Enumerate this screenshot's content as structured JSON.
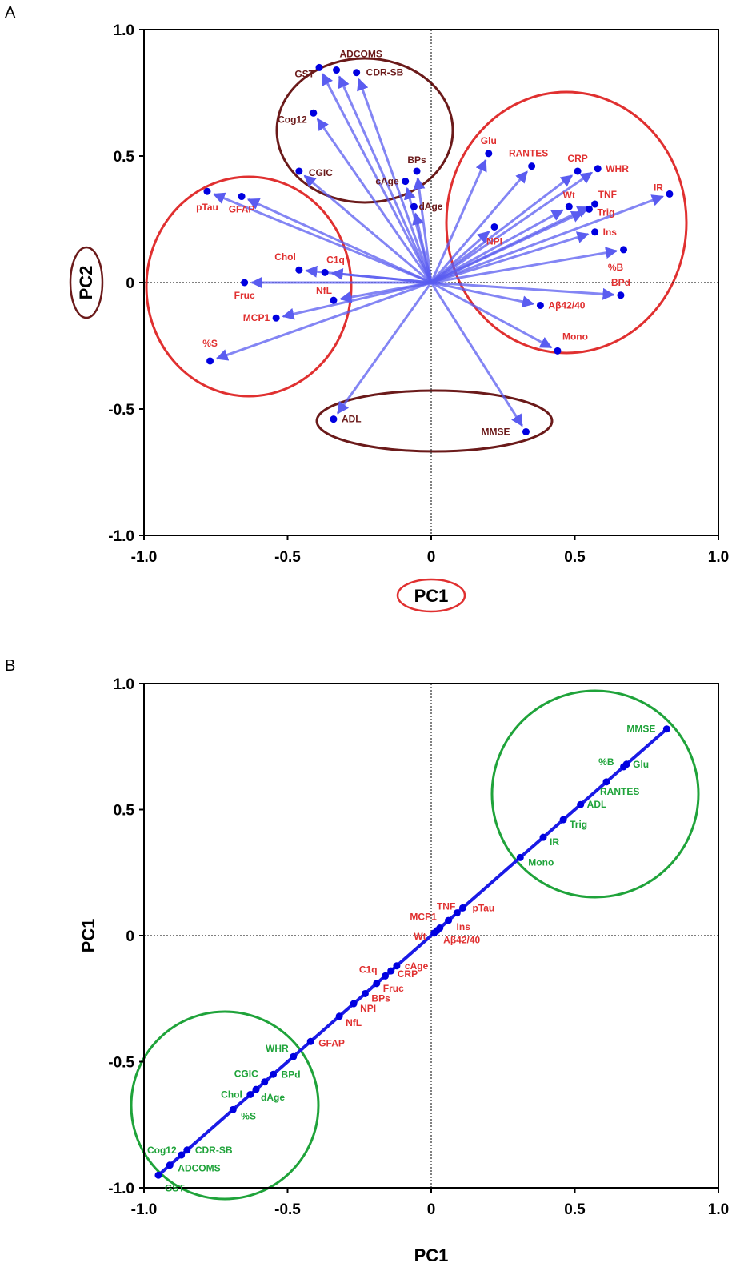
{
  "colors": {
    "vector": "#5a5cf0",
    "point": "#0000e0",
    "group_red": "#e03030",
    "group_maroon": "#6b1a1a",
    "group_green": "#1fa33a",
    "label_red": "#e03030",
    "label_maroon": "#6b1a1a",
    "label_green": "#1fa33a",
    "line_blue": "#1a1ae6"
  },
  "chart_data": [
    {
      "panel": "A",
      "type": "scatter",
      "subtype": "biplot-vectors",
      "xlabel": "PC1",
      "ylabel": "PC2",
      "xlim": [
        -1.0,
        1.0
      ],
      "ylim": [
        -1.0,
        1.0
      ],
      "xticks": [
        "-1.0",
        "-0.5",
        "0",
        "0.5",
        "1.0"
      ],
      "yticks": [
        "1.0",
        "0.5",
        "0",
        "-0.5",
        "-1.0"
      ],
      "grid": false,
      "points": [
        {
          "name": "ADCOMS",
          "x": -0.33,
          "y": 0.84,
          "group": "maroon"
        },
        {
          "name": "GST",
          "x": -0.39,
          "y": 0.85,
          "group": "maroon"
        },
        {
          "name": "CDR-SB",
          "x": -0.26,
          "y": 0.83,
          "group": "maroon"
        },
        {
          "name": "Cog12",
          "x": -0.41,
          "y": 0.67,
          "group": "maroon"
        },
        {
          "name": "CGIC",
          "x": -0.46,
          "y": 0.44,
          "group": "maroon"
        },
        {
          "name": "cAge",
          "x": -0.09,
          "y": 0.4,
          "group": "maroon"
        },
        {
          "name": "BPs",
          "x": -0.05,
          "y": 0.44,
          "group": "maroon"
        },
        {
          "name": "dAge",
          "x": -0.06,
          "y": 0.3,
          "group": "maroon"
        },
        {
          "name": "Glu",
          "x": 0.2,
          "y": 0.51,
          "group": "red"
        },
        {
          "name": "RANTES",
          "x": 0.35,
          "y": 0.46,
          "group": "red"
        },
        {
          "name": "CRP",
          "x": 0.51,
          "y": 0.44,
          "group": "red"
        },
        {
          "name": "WHR",
          "x": 0.58,
          "y": 0.45,
          "group": "red"
        },
        {
          "name": "IR",
          "x": 0.83,
          "y": 0.35,
          "group": "red"
        },
        {
          "name": "TNF",
          "x": 0.57,
          "y": 0.31,
          "group": "red"
        },
        {
          "name": "Wt",
          "x": 0.48,
          "y": 0.3,
          "group": "red"
        },
        {
          "name": "Trig",
          "x": 0.55,
          "y": 0.29,
          "group": "red"
        },
        {
          "name": "NPI",
          "x": 0.22,
          "y": 0.22,
          "group": "red"
        },
        {
          "name": "Ins",
          "x": 0.57,
          "y": 0.2,
          "group": "red"
        },
        {
          "name": "%B",
          "x": 0.67,
          "y": 0.13,
          "group": "red"
        },
        {
          "name": "BPd",
          "x": 0.66,
          "y": -0.05,
          "group": "red"
        },
        {
          "name": "Aβ42/40",
          "x": 0.38,
          "y": -0.09,
          "group": "red"
        },
        {
          "name": "Mono",
          "x": 0.44,
          "y": -0.27,
          "group": "red"
        },
        {
          "name": "pTau",
          "x": -0.78,
          "y": 0.36,
          "group": "red"
        },
        {
          "name": "GFAP",
          "x": -0.66,
          "y": 0.34,
          "group": "red"
        },
        {
          "name": "Chol",
          "x": -0.46,
          "y": 0.05,
          "group": "red"
        },
        {
          "name": "C1q",
          "x": -0.37,
          "y": 0.04,
          "group": "red"
        },
        {
          "name": "Fruc",
          "x": -0.65,
          "y": 0.0,
          "group": "red"
        },
        {
          "name": "NfL",
          "x": -0.34,
          "y": -0.07,
          "group": "red"
        },
        {
          "name": "MCP1",
          "x": -0.54,
          "y": -0.14,
          "group": "red"
        },
        {
          "name": "%S",
          "x": -0.77,
          "y": -0.31,
          "group": "red"
        },
        {
          "name": "ADL",
          "x": -0.34,
          "y": -0.54,
          "group": "maroon"
        },
        {
          "name": "MMSE",
          "x": 0.33,
          "y": -0.59,
          "group": "maroon"
        }
      ]
    },
    {
      "panel": "B",
      "type": "line",
      "xlabel": "PC1",
      "ylabel": "PC1",
      "xlim": [
        -1.0,
        1.0
      ],
      "ylim": [
        -1.0,
        1.0
      ],
      "xticks": [
        "-1.0",
        "-0.5",
        "0",
        "0.5",
        "1.0"
      ],
      "yticks": [
        "1.0",
        "0.5",
        "0",
        "-0.5",
        "-1.0"
      ],
      "grid": false,
      "points": [
        {
          "name": "MMSE",
          "x": 0.82,
          "y": 0.82,
          "group": "green"
        },
        {
          "name": "Glu",
          "x": 0.68,
          "y": 0.68,
          "group": "green"
        },
        {
          "name": "%B",
          "x": 0.67,
          "y": 0.67,
          "group": "green"
        },
        {
          "name": "RANTES",
          "x": 0.61,
          "y": 0.61,
          "group": "green"
        },
        {
          "name": "ADL",
          "x": 0.52,
          "y": 0.52,
          "group": "green"
        },
        {
          "name": "Trig",
          "x": 0.46,
          "y": 0.46,
          "group": "green"
        },
        {
          "name": "IR",
          "x": 0.39,
          "y": 0.39,
          "group": "green"
        },
        {
          "name": "Mono",
          "x": 0.31,
          "y": 0.31,
          "group": "green"
        },
        {
          "name": "pTau",
          "x": 0.11,
          "y": 0.11,
          "group": "red"
        },
        {
          "name": "TNF",
          "x": 0.09,
          "y": 0.09,
          "group": "red"
        },
        {
          "name": "Ins",
          "x": 0.06,
          "y": 0.06,
          "group": "red"
        },
        {
          "name": "MCP1",
          "x": 0.03,
          "y": 0.03,
          "group": "red"
        },
        {
          "name": "Wt",
          "x": 0.01,
          "y": 0.01,
          "group": "red"
        },
        {
          "name": "Aβ42/40",
          "x": 0.02,
          "y": 0.02,
          "group": "red"
        },
        {
          "name": "cAge",
          "x": -0.12,
          "y": -0.12,
          "group": "red"
        },
        {
          "name": "CRP",
          "x": -0.14,
          "y": -0.14,
          "group": "red"
        },
        {
          "name": "C1q",
          "x": -0.16,
          "y": -0.16,
          "group": "red"
        },
        {
          "name": "Fruc",
          "x": -0.19,
          "y": -0.19,
          "group": "red"
        },
        {
          "name": "BPs",
          "x": -0.23,
          "y": -0.23,
          "group": "red"
        },
        {
          "name": "NPI",
          "x": -0.27,
          "y": -0.27,
          "group": "red"
        },
        {
          "name": "NfL",
          "x": -0.32,
          "y": -0.32,
          "group": "red"
        },
        {
          "name": "GFAP",
          "x": -0.42,
          "y": -0.42,
          "group": "red"
        },
        {
          "name": "WHR",
          "x": -0.48,
          "y": -0.48,
          "group": "green"
        },
        {
          "name": "BPd",
          "x": -0.55,
          "y": -0.55,
          "group": "green"
        },
        {
          "name": "CGIC",
          "x": -0.58,
          "y": -0.58,
          "group": "green"
        },
        {
          "name": "dAge",
          "x": -0.61,
          "y": -0.61,
          "group": "green"
        },
        {
          "name": "Chol",
          "x": -0.63,
          "y": -0.63,
          "group": "green"
        },
        {
          "name": "%S",
          "x": -0.69,
          "y": -0.69,
          "group": "green"
        },
        {
          "name": "CDR-SB",
          "x": -0.85,
          "y": -0.85,
          "group": "green"
        },
        {
          "name": "Cog12",
          "x": -0.87,
          "y": -0.87,
          "group": "green"
        },
        {
          "name": "ADCOMS",
          "x": -0.91,
          "y": -0.91,
          "group": "green"
        },
        {
          "name": "GST",
          "x": -0.95,
          "y": -0.95,
          "group": "green"
        }
      ]
    }
  ]
}
